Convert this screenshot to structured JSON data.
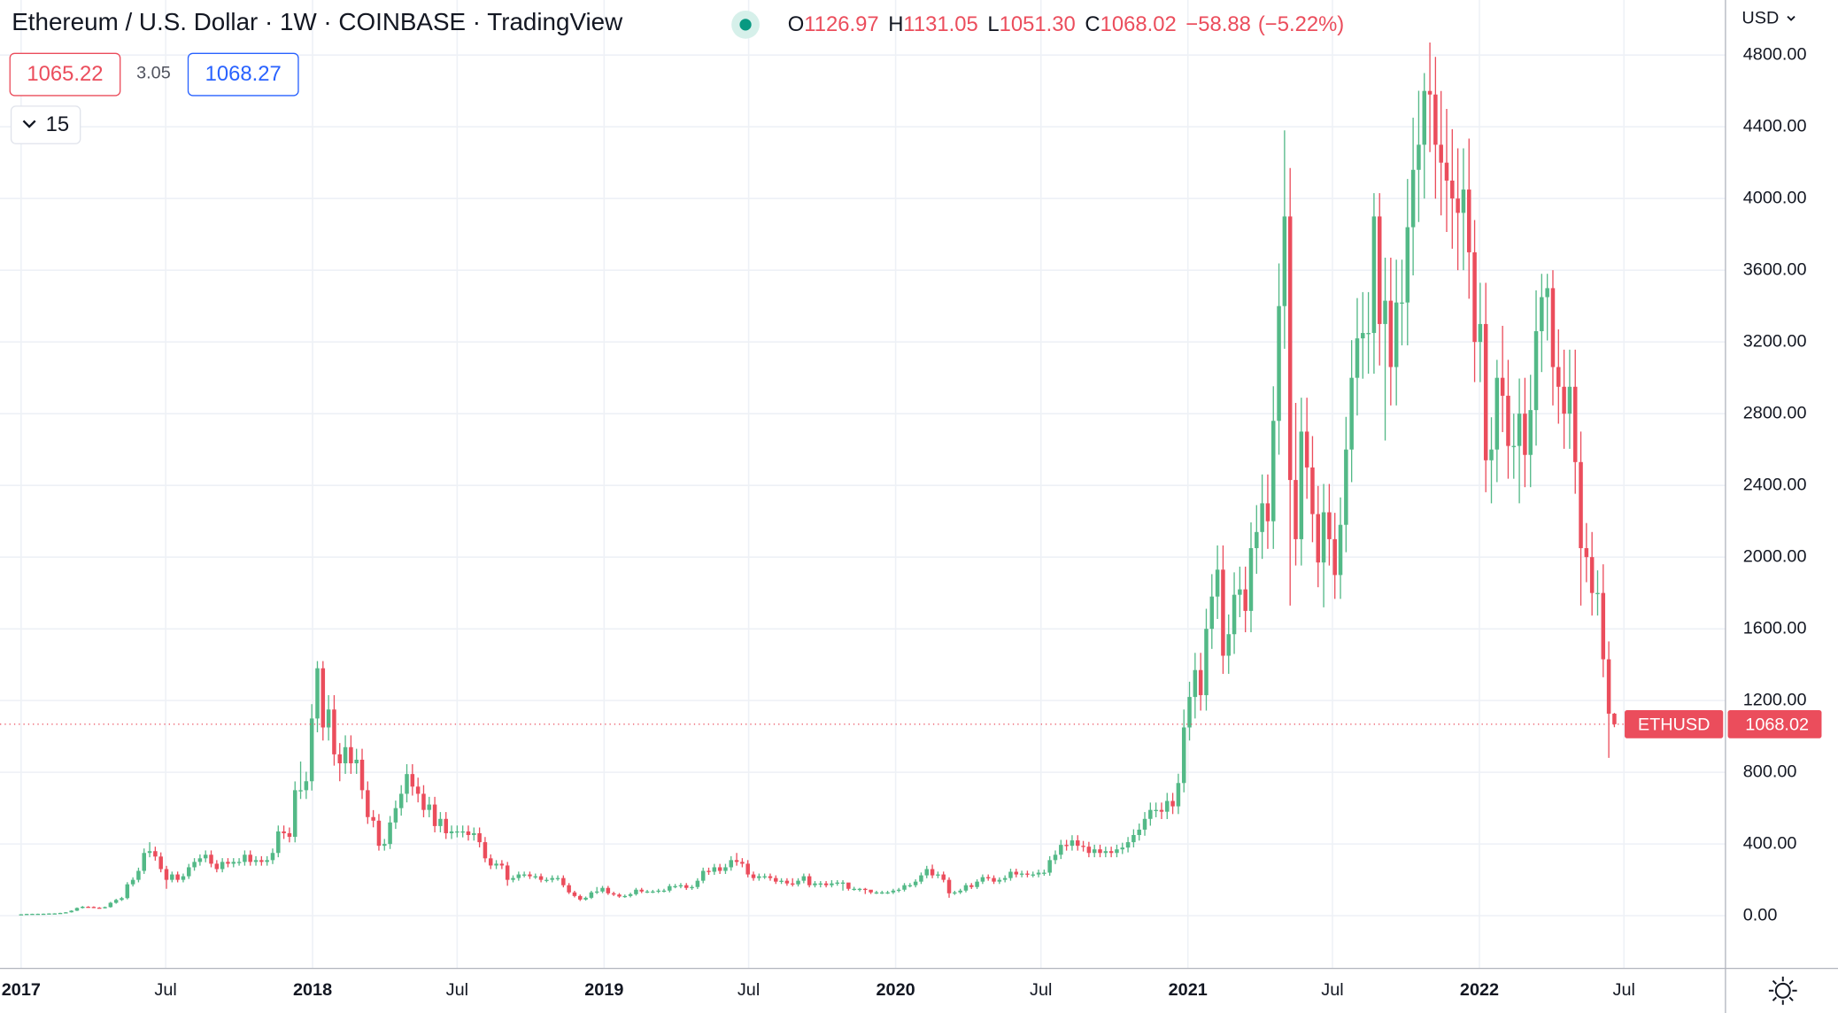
{
  "header": {
    "title": "Ethereum / U.S. Dollar · 1W · COINBASE · TradingView",
    "ohlc_letters": [
      "O",
      "H",
      "L",
      "C"
    ],
    "ohlc_values": [
      1126.97,
      1131.05,
      {
        "value": 1051.3,
        "label": "1051.30"
      },
      1068.02
    ],
    "change": {
      "value": -58.88,
      "label": "−58.88"
    },
    "change_percent": {
      "value": -5.22,
      "label": "(−5.22%)"
    },
    "bid": 1065.22,
    "spread": 3.05,
    "ask": 1068.27,
    "indicator_count": 15
  },
  "chart_data": {
    "type": "candlestick",
    "currency": "USD",
    "symbol_label": "ETHUSD",
    "up_color": "#53b987",
    "down_color": "#eb4d5c",
    "grid": true,
    "xlim": [
      -3.774,
      304.87
    ],
    "xticks": [
      {
        "value": 0,
        "label": "2017"
      },
      {
        "value": 25.86,
        "label": "Jul"
      },
      {
        "value": 52.14,
        "label": "2018"
      },
      {
        "value": 78.0,
        "label": "Jul"
      },
      {
        "value": 104.29,
        "label": "2019"
      },
      {
        "value": 130.14,
        "label": "Jul"
      },
      {
        "value": 156.43,
        "label": "2020"
      },
      {
        "value": 182.43,
        "label": "Jul"
      },
      {
        "value": 208.71,
        "label": "2021"
      },
      {
        "value": 234.57,
        "label": "Jul"
      },
      {
        "value": 260.86,
        "label": "2022"
      },
      {
        "value": 286.71,
        "label": "Jul"
      }
    ],
    "ylim": [
      -294,
      5107
    ],
    "yticks": [
      {
        "value": 0,
        "label": "0.00"
      },
      {
        "value": 400,
        "label": "400.00"
      },
      {
        "value": 800,
        "label": "800.00"
      },
      {
        "value": 1200,
        "label": "1200.00"
      },
      {
        "value": 1600,
        "label": "1600.00"
      },
      {
        "value": 2000,
        "label": "2000.00"
      },
      {
        "value": 2400,
        "label": "2400.00"
      },
      {
        "value": 2800,
        "label": "2800.00"
      },
      {
        "value": 3200,
        "label": "3200.00"
      },
      {
        "value": 3600,
        "label": "3600.00"
      },
      {
        "value": 4000,
        "label": "4000.00"
      },
      {
        "value": 4400,
        "label": "4400.00"
      },
      {
        "value": 4800,
        "label": "4800.00"
      }
    ],
    "x": [
      0,
      1,
      2,
      3,
      4,
      5,
      6,
      7,
      8,
      9,
      10,
      11,
      12,
      13,
      14,
      15,
      16,
      17,
      18,
      19,
      20,
      21,
      22,
      23,
      24,
      25,
      26,
      27,
      28,
      29,
      30,
      31,
      32,
      33,
      34,
      35,
      36,
      37,
      38,
      39,
      40,
      41,
      42,
      43,
      44,
      45,
      46,
      47,
      48,
      49,
      50,
      51,
      52,
      53,
      54,
      55,
      56,
      57,
      58,
      59,
      60,
      61,
      62,
      63,
      64,
      65,
      66,
      67,
      68,
      69,
      70,
      71,
      72,
      73,
      74,
      75,
      76,
      77,
      78,
      79,
      80,
      81,
      82,
      83,
      84,
      85,
      86,
      87,
      88,
      89,
      90,
      91,
      92,
      93,
      94,
      95,
      96,
      97,
      98,
      99,
      100,
      101,
      102,
      103,
      104,
      105,
      106,
      107,
      108,
      109,
      110,
      111,
      112,
      113,
      114,
      115,
      116,
      117,
      118,
      119,
      120,
      121,
      122,
      123,
      124,
      125,
      126,
      127,
      128,
      129,
      130,
      131,
      132,
      133,
      134,
      135,
      136,
      137,
      138,
      139,
      140,
      141,
      142,
      143,
      144,
      145,
      146,
      147,
      148,
      149,
      150,
      151,
      152,
      153,
      154,
      155,
      156,
      157,
      158,
      159,
      160,
      161,
      162,
      163,
      164,
      165,
      166,
      167,
      168,
      169,
      170,
      171,
      172,
      173,
      174,
      175,
      176,
      177,
      178,
      179,
      180,
      181,
      182,
      183,
      184,
      185,
      186,
      187,
      188,
      189,
      190,
      191,
      192,
      193,
      194,
      195,
      196,
      197,
      198,
      199,
      200,
      201,
      202,
      203,
      204,
      205,
      206,
      207,
      208,
      209,
      210,
      211,
      212,
      213,
      214,
      215,
      216,
      217,
      218,
      219,
      220,
      221,
      222,
      223,
      224,
      225,
      226,
      227,
      228,
      229,
      230,
      231,
      232,
      233,
      234,
      235,
      236,
      237,
      238,
      239,
      240,
      241,
      242,
      243,
      244,
      245,
      246,
      247,
      248,
      249,
      250,
      251,
      252,
      253,
      254,
      255,
      256,
      257,
      258,
      259,
      260,
      261,
      262,
      263,
      264,
      265,
      266,
      267,
      268,
      269,
      270,
      271,
      272,
      273,
      274,
      275,
      276,
      277,
      278,
      279,
      280,
      281,
      282,
      283,
      284,
      285
    ],
    "open": [
      7.9,
      8,
      10,
      10.5,
      10.7,
      11,
      12.5,
      13,
      15.5,
      19,
      28,
      43,
      50,
      49,
      45,
      43,
      48,
      72,
      88,
      98,
      175,
      200,
      250,
      350,
      360,
      330,
      260,
      200,
      230,
      200,
      220,
      270,
      300,
      320,
      340,
      290,
      260,
      300,
      290,
      300,
      300,
      340,
      300,
      310,
      300,
      310,
      350,
      470,
      460,
      440,
      700,
      700,
      750,
      1100,
      1380,
      1050,
      1150,
      900,
      850,
      940,
      850,
      870,
      700,
      550,
      530,
      390,
      400,
      520,
      600,
      680,
      790,
      720,
      680,
      590,
      620,
      500,
      540,
      460,
      470,
      470,
      470,
      450,
      460,
      410,
      320,
      280,
      290,
      280,
      200,
      210,
      230,
      230,
      220,
      220,
      200,
      200,
      210,
      210,
      170,
      130,
      110,
      90,
      100,
      130,
      135,
      155,
      125,
      118,
      107,
      110,
      120,
      145,
      135,
      135,
      135,
      140,
      140,
      165,
      165,
      170,
      155,
      160,
      195,
      250,
      245,
      270,
      250,
      270,
      310,
      300,
      290,
      230,
      210,
      220,
      220,
      210,
      190,
      195,
      180,
      175,
      195,
      220,
      170,
      180,
      180,
      170,
      180,
      185,
      185,
      150,
      150,
      150,
      145,
      130,
      130,
      130,
      130,
      140,
      145,
      170,
      170,
      190,
      225,
      260,
      225,
      230,
      200,
      125,
      130,
      140,
      170,
      160,
      190,
      215,
      210,
      190,
      200,
      210,
      245,
      230,
      235,
      230,
      230,
      240,
      240,
      310,
      340,
      395,
      390,
      420,
      390,
      385,
      350,
      370,
      350,
      360,
      350,
      370,
      380,
      410,
      450,
      480,
      540,
      590,
      590,
      580,
      640,
      610,
      740,
      1050,
      1220,
      1370,
      1230,
      1600,
      1780,
      1930,
      1450,
      1570,
      1790,
      1820,
      1700,
      2050,
      2140,
      2300,
      2200,
      2760,
      3400,
      3900,
      2430,
      2100,
      2700,
      2500,
      2240,
      1970,
      2250,
      2100,
      1900,
      2180,
      2600,
      3000,
      3220,
      3250,
      3250,
      3900,
      3300,
      3430,
      3060,
      3420,
      3420,
      3840,
      4160,
      4300,
      4600,
      4580,
      4300,
      4200,
      4100,
      4000,
      3920,
      4050,
      3700,
      3200,
      3300,
      2540,
      2600,
      3000,
      2900,
      2620,
      2620,
      2800,
      2570,
      2820,
      3260,
      3450,
      3500,
      3060,
      2950,
      2800,
      2950,
      2530,
      2050,
      2000,
      1800,
      1800,
      1430,
      1126.97
    ],
    "high": [
      8.6,
      10.7,
      11.2,
      11.4,
      11.8,
      13.4,
      13.9,
      16.6,
      20.3,
      30,
      46,
      54,
      53,
      52,
      48,
      51,
      77,
      94,
      105,
      187,
      214,
      268,
      375,
      410,
      385,
      353,
      278,
      246,
      246,
      235,
      289,
      321,
      342,
      364,
      364,
      310,
      321,
      321,
      321,
      321,
      364,
      364,
      332,
      332,
      332,
      375,
      503,
      503,
      492,
      749,
      860,
      803,
      1180,
      1420,
      1420,
      1230,
      1230,
      963,
      1006,
      1006,
      931,
      931,
      749,
      589,
      567,
      428,
      556,
      642,
      728,
      845,
      845,
      770,
      728,
      663,
      663,
      578,
      578,
      503,
      503,
      503,
      503,
      492,
      492,
      439,
      342,
      310,
      310,
      300,
      225,
      246,
      246,
      246,
      235,
      235,
      214,
      225,
      225,
      225,
      182,
      139,
      118,
      107,
      139,
      160,
      166,
      166,
      134,
      126,
      118,
      128,
      155,
      155,
      144,
      144,
      150,
      150,
      177,
      177,
      182,
      182,
      171,
      209,
      268,
      268,
      289,
      289,
      289,
      332,
      350,
      321,
      310,
      246,
      235,
      235,
      235,
      225,
      209,
      209,
      209,
      209,
      235,
      235,
      193,
      193,
      193,
      198,
      198,
      198,
      161,
      161,
      155,
      155,
      139,
      139,
      139,
      139,
      150,
      155,
      182,
      182,
      203,
      241,
      278,
      285,
      246,
      246,
      214,
      139,
      150,
      182,
      182,
      203,
      230,
      230,
      225,
      214,
      225,
      262,
      262,
      251,
      251,
      246,
      257,
      257,
      332,
      364,
      423,
      423,
      449,
      449,
      417,
      412,
      396,
      396,
      385,
      385,
      396,
      407,
      439,
      482,
      514,
      578,
      631,
      631,
      631,
      685,
      685,
      792,
      1150,
      1305,
      1466,
      1466,
      1712,
      1905,
      2065,
      2065,
      1680,
      1915,
      1947,
      1947,
      2194,
      2290,
      2461,
      2461,
      2953,
      3638,
      4380,
      4170,
      2860,
      2889,
      2889,
      2675,
      2397,
      2408,
      2408,
      2247,
      2333,
      2782,
      3210,
      3445,
      3478,
      3478,
      4030,
      4030,
      3670,
      3670,
      3659,
      3659,
      4109,
      4451,
      4601,
      4700,
      4870,
      4790,
      4600,
      4500,
      4387,
      4280,
      4280,
      4334,
      3880,
      3530,
      3530,
      2780,
      3100,
      3290,
      3100,
      2800,
      2996,
      3000,
      3017,
      3488,
      3580,
      3580,
      3600,
      3270,
      3157,
      3157,
      3157,
      2700,
      2190,
      2140,
      1926,
      1960,
      1530,
      1131.05
    ],
    "low": [
      7.3,
      7.4,
      9.3,
      9.8,
      10,
      10.2,
      11.6,
      12.1,
      14.4,
      17.7,
      26,
      40,
      45,
      42,
      40,
      40,
      45,
      67,
      82,
      91,
      163,
      186,
      233,
      326,
      307,
      242,
      150,
      186,
      186,
      186,
      205,
      251,
      279,
      298,
      270,
      242,
      242,
      270,
      270,
      279,
      279,
      279,
      279,
      279,
      279,
      288,
      326,
      428,
      409,
      409,
      651,
      651,
      698,
      1023,
      977,
      977,
      837,
      750,
      791,
      791,
      791,
      651,
      512,
      493,
      363,
      363,
      372,
      484,
      558,
      632,
      670,
      632,
      549,
      549,
      465,
      465,
      428,
      428,
      437,
      437,
      419,
      419,
      381,
      298,
      260,
      260,
      260,
      167,
      186,
      195,
      214,
      205,
      205,
      186,
      186,
      186,
      195,
      158,
      121,
      102,
      82,
      84,
      93,
      121,
      126,
      116,
      110,
      100,
      100,
      102,
      112,
      126,
      126,
      126,
      126,
      130,
      130,
      153,
      153,
      144,
      144,
      149,
      181,
      228,
      228,
      233,
      233,
      251,
      279,
      270,
      214,
      195,
      195,
      205,
      195,
      177,
      177,
      167,
      163,
      163,
      181,
      158,
      158,
      158,
      158,
      158,
      167,
      140,
      140,
      140,
      135,
      121,
      121,
      121,
      121,
      121,
      121,
      130,
      135,
      158,
      158,
      177,
      209,
      209,
      209,
      186,
      100,
      116,
      121,
      130,
      149,
      149,
      177,
      195,
      177,
      177,
      186,
      195,
      214,
      214,
      214,
      214,
      214,
      223,
      223,
      288,
      316,
      363,
      363,
      363,
      358,
      326,
      326,
      326,
      326,
      326,
      326,
      344,
      353,
      381,
      419,
      446,
      502,
      549,
      539,
      539,
      567,
      567,
      688,
      977,
      1100,
      1144,
      1144,
      1488,
      1655,
      1349,
      1349,
      1460,
      1665,
      1581,
      1581,
      1907,
      1990,
      2046,
      2046,
      2571,
      3162,
      1730,
      1953,
      1953,
      2325,
      2083,
      1832,
      1720,
      1953,
      1767,
      1767,
      2027,
      2418,
      2790,
      2995,
      3023,
      3023,
      3069,
      2650,
      2846,
      2846,
      3181,
      3181,
      3571,
      3869,
      4000,
      4259,
      3999,
      3906,
      3813,
      3720,
      3600,
      3600,
      3441,
      2976,
      2976,
      2362,
      2300,
      2418,
      2697,
      2437,
      2437,
      2300,
      2390,
      2390,
      2622,
      3032,
      3208,
      2846,
      2744,
      2604,
      2604,
      2353,
      1730,
      1860,
      1674,
      1674,
      1330,
      880,
      1051.3
    ],
    "close": [
      8,
      10,
      10.5,
      10.7,
      11,
      12.5,
      13,
      15.5,
      19,
      28,
      43,
      50,
      49,
      45,
      43,
      48,
      72,
      88,
      98,
      175,
      200,
      250,
      350,
      360,
      330,
      260,
      200,
      230,
      200,
      220,
      270,
      300,
      320,
      340,
      290,
      260,
      300,
      290,
      300,
      300,
      340,
      300,
      310,
      300,
      310,
      350,
      470,
      460,
      440,
      700,
      700,
      750,
      1100,
      1380,
      1050,
      1150,
      900,
      850,
      940,
      850,
      870,
      700,
      550,
      530,
      390,
      400,
      520,
      600,
      680,
      790,
      720,
      680,
      590,
      620,
      500,
      540,
      460,
      470,
      470,
      470,
      450,
      460,
      410,
      320,
      280,
      290,
      280,
      200,
      210,
      230,
      230,
      220,
      220,
      200,
      200,
      210,
      210,
      170,
      130,
      110,
      90,
      100,
      130,
      135,
      155,
      125,
      118,
      107,
      110,
      120,
      145,
      135,
      135,
      135,
      140,
      140,
      165,
      165,
      170,
      155,
      160,
      195,
      250,
      245,
      270,
      250,
      270,
      310,
      300,
      290,
      230,
      210,
      220,
      220,
      210,
      190,
      195,
      180,
      175,
      195,
      220,
      170,
      180,
      180,
      170,
      180,
      185,
      185,
      150,
      150,
      150,
      145,
      130,
      130,
      130,
      130,
      140,
      145,
      170,
      170,
      190,
      225,
      260,
      225,
      230,
      200,
      125,
      130,
      140,
      170,
      160,
      190,
      215,
      210,
      190,
      200,
      210,
      245,
      230,
      235,
      230,
      230,
      240,
      240,
      310,
      340,
      395,
      390,
      420,
      390,
      385,
      350,
      370,
      350,
      360,
      350,
      370,
      380,
      410,
      450,
      480,
      540,
      590,
      590,
      580,
      640,
      610,
      740,
      1050,
      1220,
      1370,
      1230,
      1600,
      1780,
      1930,
      1450,
      1570,
      1790,
      1820,
      1700,
      2050,
      2140,
      2300,
      2200,
      2760,
      3400,
      3900,
      2430,
      2100,
      2700,
      2500,
      2240,
      1970,
      2250,
      2100,
      1900,
      2180,
      2600,
      3000,
      3220,
      3250,
      3250,
      3900,
      3300,
      3430,
      3060,
      3420,
      3420,
      3840,
      4160,
      4300,
      4600,
      4580,
      4300,
      4200,
      4100,
      4000,
      3920,
      4050,
      3700,
      3200,
      3300,
      2540,
      2600,
      3000,
      2900,
      2620,
      2620,
      2800,
      2570,
      2820,
      3260,
      3450,
      3500,
      3060,
      2950,
      2800,
      2950,
      2530,
      2050,
      2000,
      1800,
      1800,
      1430,
      1126.9,
      1068.02
    ]
  }
}
